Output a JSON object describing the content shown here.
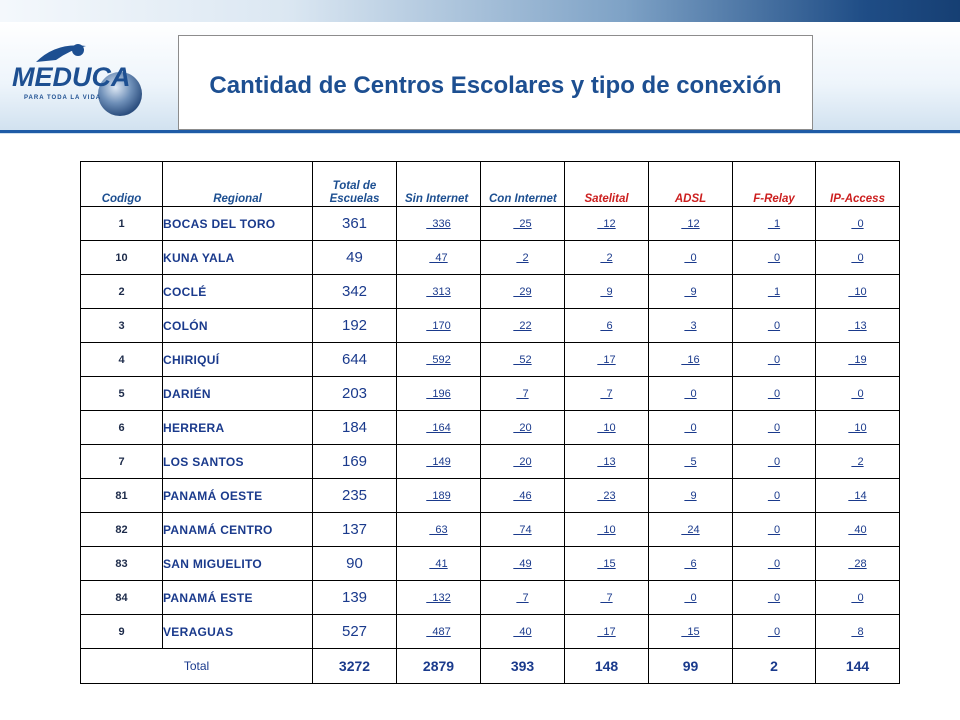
{
  "logo": {
    "name": "MEDUCA",
    "tagline": "PARA TODA LA VIDA"
  },
  "title": "Cantidad de Centros Escolares y tipo de conexión",
  "table": {
    "headers": {
      "codigo": "Codigo",
      "regional": "Regional",
      "total": "Total de Escuelas",
      "sin": "Sin  Internet",
      "con": "Con  Internet",
      "satelital": "Satelital",
      "adsl": "ADSL",
      "frelay": "F-Relay",
      "ipaccess": "IP-Access"
    },
    "rows": [
      {
        "codigo": "1",
        "regional": "BOCAS DEL TORO",
        "total": "361",
        "sin": "336",
        "con": "25",
        "satelital": "12",
        "adsl": "12",
        "frelay": "1",
        "ipaccess": "0"
      },
      {
        "codigo": "10",
        "regional": "KUNA YALA",
        "total": "49",
        "sin": "47",
        "con": "2",
        "satelital": "2",
        "adsl": "0",
        "frelay": "0",
        "ipaccess": "0"
      },
      {
        "codigo": "2",
        "regional": "COCLÉ",
        "total": "342",
        "sin": "313",
        "con": "29",
        "satelital": "9",
        "adsl": "9",
        "frelay": "1",
        "ipaccess": "10"
      },
      {
        "codigo": "3",
        "regional": "COLÓN",
        "total": "192",
        "sin": "170",
        "con": "22",
        "satelital": "6",
        "adsl": "3",
        "frelay": "0",
        "ipaccess": "13"
      },
      {
        "codigo": "4",
        "regional": "CHIRIQUÍ",
        "total": "644",
        "sin": "592",
        "con": "52",
        "satelital": "17",
        "adsl": "16",
        "frelay": "0",
        "ipaccess": "19"
      },
      {
        "codigo": "5",
        "regional": "DARIÉN",
        "total": "203",
        "sin": "196",
        "con": "7",
        "satelital": "7",
        "adsl": "0",
        "frelay": "0",
        "ipaccess": "0"
      },
      {
        "codigo": "6",
        "regional": "HERRERA",
        "total": "184",
        "sin": "164",
        "con": "20",
        "satelital": "10",
        "adsl": "0",
        "frelay": "0",
        "ipaccess": "10"
      },
      {
        "codigo": "7",
        "regional": "LOS SANTOS",
        "total": "169",
        "sin": "149",
        "con": "20",
        "satelital": "13",
        "adsl": "5",
        "frelay": "0",
        "ipaccess": "2"
      },
      {
        "codigo": "81",
        "regional": "PANAMÁ OESTE",
        "total": "235",
        "sin": "189",
        "con": "46",
        "satelital": "23",
        "adsl": "9",
        "frelay": "0",
        "ipaccess": "14"
      },
      {
        "codigo": "82",
        "regional": "PANAMÁ CENTRO",
        "total": "137",
        "sin": "63",
        "con": "74",
        "satelital": "10",
        "adsl": "24",
        "frelay": "0",
        "ipaccess": "40"
      },
      {
        "codigo": "83",
        "regional": "SAN MIGUELITO",
        "total": "90",
        "sin": "41",
        "con": "49",
        "satelital": "15",
        "adsl": "6",
        "frelay": "0",
        "ipaccess": "28"
      },
      {
        "codigo": "84",
        "regional": "PANAMÁ ESTE",
        "total": "139",
        "sin": "132",
        "con": "7",
        "satelital": "7",
        "adsl": "0",
        "frelay": "0",
        "ipaccess": "0"
      },
      {
        "codigo": "9",
        "regional": "VERAGUAS",
        "total": "527",
        "sin": "487",
        "con": "40",
        "satelital": "17",
        "adsl": "15",
        "frelay": "0",
        "ipaccess": "8"
      }
    ],
    "totals": {
      "label": "Total",
      "total": "3272",
      "sin": "2879",
      "con": "393",
      "satelital": "148",
      "adsl": "99",
      "frelay": "2",
      "ipaccess": "144"
    }
  }
}
